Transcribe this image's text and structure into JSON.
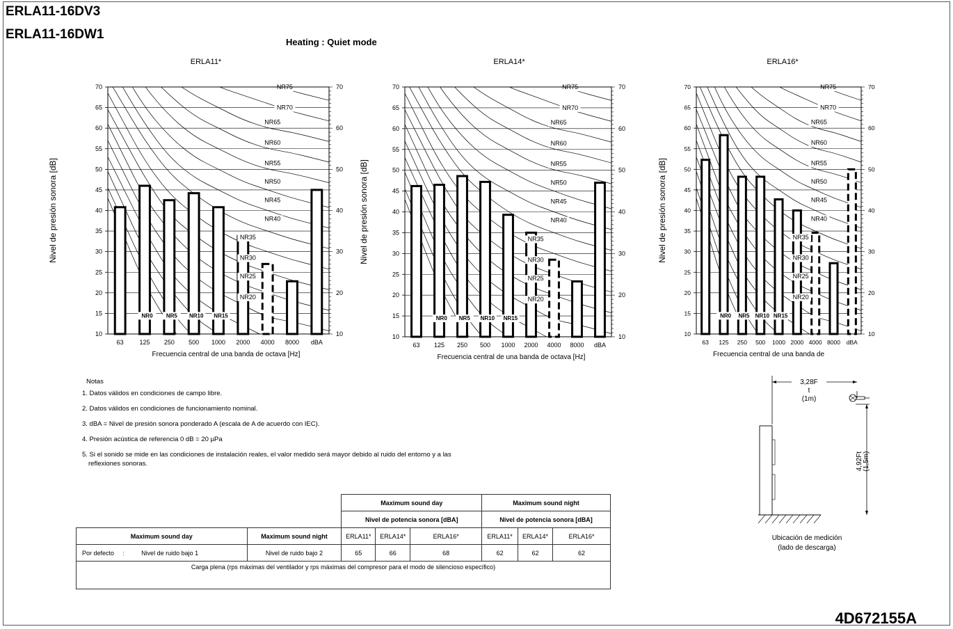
{
  "header": {
    "model_line_1": "ERLA11-16DV3",
    "model_line_2": "ERLA11-16DW1",
    "mode_title": "Heating : Quiet mode"
  },
  "chart_data": [
    {
      "type": "bar",
      "title": "ERLA11*",
      "ylabel": "Nivel de presión sonora [dB]",
      "xlabel": "Frecuencia central de una banda de octava [Hz]",
      "ylim": [
        10,
        70
      ],
      "yticks": [
        10,
        15,
        20,
        25,
        30,
        35,
        40,
        45,
        50,
        55,
        60,
        65,
        70
      ],
      "right_yticks": [
        10,
        20,
        30,
        40,
        50,
        60,
        70
      ],
      "categories": [
        "63",
        "125",
        "250",
        "500",
        "1000",
        "2000",
        "4000",
        "8000",
        "dBA"
      ],
      "values": [
        40.8,
        46.0,
        42.5,
        44.2,
        40.8,
        33.8,
        27.0,
        22.8,
        45.0
      ],
      "dashed": [
        false,
        false,
        false,
        false,
        false,
        false,
        true,
        false,
        false
      ],
      "nr_curves": [
        "NR75",
        "NR70",
        "NR65",
        "NR60",
        "NR55",
        "NR50",
        "NR45",
        "NR40",
        "NR35",
        "NR30",
        "NR25",
        "NR20",
        "NR15",
        "NR10",
        "NR5",
        "NR0"
      ]
    },
    {
      "type": "bar",
      "title": "ERLA14*",
      "ylabel": "Nivel de presión sonora [dB]",
      "xlabel": "Frecuencia central de una banda de octava [Hz]",
      "ylim": [
        10,
        70
      ],
      "yticks": [
        10,
        15,
        20,
        25,
        30,
        35,
        40,
        45,
        50,
        55,
        60,
        65,
        70
      ],
      "right_yticks": [
        10,
        20,
        30,
        40,
        50,
        60,
        70
      ],
      "categories": [
        "63",
        "125",
        "250",
        "500",
        "1000",
        "2000",
        "4000",
        "8000",
        "dBA"
      ],
      "values": [
        46.2,
        46.5,
        48.6,
        47.2,
        39.3,
        35.0,
        28.5,
        23.3,
        47.0
      ],
      "dashed": [
        false,
        false,
        false,
        false,
        false,
        false,
        true,
        false,
        false
      ],
      "nr_curves": [
        "NR75",
        "NR70",
        "NR65",
        "NR60",
        "NR55",
        "NR50",
        "NR45",
        "NR40",
        "NR35",
        "NR30",
        "NR25",
        "NR20",
        "NR15",
        "NR10",
        "NR5",
        "NR0"
      ]
    },
    {
      "type": "bar",
      "title": "ERLA16*",
      "ylabel": "Nivel de presión sonora [dB]",
      "xlabel": "Frecuencia central de una banda de",
      "ylim": [
        10,
        70
      ],
      "yticks": [
        10,
        15,
        20,
        25,
        30,
        35,
        40,
        45,
        50,
        55,
        60,
        65,
        70
      ],
      "right_yticks": [
        10,
        20,
        30,
        40,
        50,
        60,
        70
      ],
      "categories": [
        "63",
        "125",
        "250",
        "500",
        "1000",
        "2000",
        "4000",
        "8000",
        "dBA"
      ],
      "values": [
        52.3,
        58.3,
        48.2,
        48.2,
        42.7,
        40.0,
        34.6,
        27.2,
        50.0
      ],
      "dashed": [
        false,
        false,
        false,
        false,
        false,
        false,
        true,
        false,
        true
      ],
      "nr_curves": [
        "NR75",
        "NR70",
        "NR65",
        "NR60",
        "NR55",
        "NR50",
        "NR45",
        "NR40",
        "NR35",
        "NR30",
        "NR25",
        "NR20",
        "NR15",
        "NR10",
        "NR5",
        "NR0"
      ]
    }
  ],
  "notes": {
    "heading": "Notas",
    "items": [
      "1. Datos válidos en condiciones de campo libre.",
      "2. Datos válidos en condiciones de funcionamiento nominal.",
      "3. dBA = Nivel de presión sonora ponderado A (escala de A de acuerdo con IEC).",
      "4. Presión acústica de referencia 0 dB = 20 µPa",
      "5. Si el sonido se mide en las condiciones de instalación reales, el valor medido será mayor debido al ruido del entorno y a las",
      "reflexiones sonoras."
    ]
  },
  "table": {
    "group_day": "Maximum sound day",
    "group_night": "Maximum sound night",
    "sub_header": "Nivel de potencia sonora [dBA]",
    "col_day": "Maximum sound day",
    "col_night": "Maximum sound night",
    "models": [
      "ERLA11*",
      "ERLA14*",
      "ERLA16*"
    ],
    "row_label": "Por defecto",
    "row_sep": ":",
    "row_day_value": "Nivel de ruido bajo 1",
    "row_night_value": "Nivel de ruido bajo 2",
    "day_values": [
      "65",
      "66",
      "68"
    ],
    "night_values": [
      "62",
      "62",
      "62"
    ],
    "footer": "Carga plena (rps máximas del ventilador y rps máximas del compresor para el modo de silencioso específico)"
  },
  "location": {
    "horizontal_label_1": "3,28F",
    "horizontal_label_2": "t",
    "horizontal_label_3": "(1m)",
    "vertical_label_1": "4,92Ft",
    "vertical_label_2": "(1,5m)",
    "caption_1": "Ubicación de medición",
    "caption_2": "(lado de descarga)"
  },
  "document_id": "4D672155A"
}
